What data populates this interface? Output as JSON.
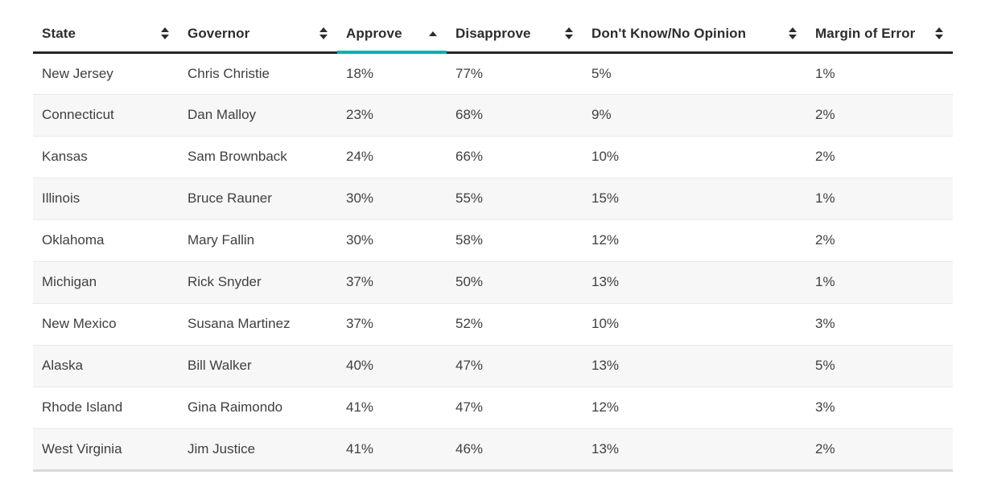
{
  "chart_data": {
    "type": "table",
    "columns": [
      {
        "label": "State",
        "sortable": true,
        "sort": "none"
      },
      {
        "label": "Governor",
        "sortable": true,
        "sort": "none"
      },
      {
        "label": "Approve",
        "sortable": true,
        "sort": "asc"
      },
      {
        "label": "Disapprove",
        "sortable": true,
        "sort": "none"
      },
      {
        "label": "Don't Know/No Opinion",
        "sortable": true,
        "sort": "none"
      },
      {
        "label": "Margin of Error",
        "sortable": true,
        "sort": "none"
      }
    ],
    "rows": [
      [
        "New Jersey",
        "Chris Christie",
        "18%",
        "77%",
        "5%",
        "1%"
      ],
      [
        "Connecticut",
        "Dan Malloy",
        "23%",
        "68%",
        "9%",
        "2%"
      ],
      [
        "Kansas",
        "Sam Brownback",
        "24%",
        "66%",
        "10%",
        "2%"
      ],
      [
        "Illinois",
        "Bruce Rauner",
        "30%",
        "55%",
        "15%",
        "1%"
      ],
      [
        "Oklahoma",
        "Mary Fallin",
        "30%",
        "58%",
        "12%",
        "2%"
      ],
      [
        "Michigan",
        "Rick Snyder",
        "37%",
        "50%",
        "13%",
        "1%"
      ],
      [
        "New Mexico",
        "Susana Martinez",
        "37%",
        "52%",
        "10%",
        "3%"
      ],
      [
        "Alaska",
        "Bill Walker",
        "40%",
        "47%",
        "13%",
        "5%"
      ],
      [
        "Rhode Island",
        "Gina Raimondo",
        "41%",
        "47%",
        "12%",
        "3%"
      ],
      [
        "West Virginia",
        "Jim Justice",
        "41%",
        "46%",
        "13%",
        "2%"
      ]
    ],
    "sorted_by": {
      "column": "Approve",
      "direction": "asc"
    }
  },
  "colors": {
    "accent_teal": "#00b1b0",
    "header_rule": "#262626",
    "header_text": "#2d2d2d",
    "body_text": "#3f3f3f",
    "alt_row_bg": "#f7f7f7",
    "row_divider": "#e9e9e9",
    "table_bottom_border": "#d9d9d9"
  }
}
